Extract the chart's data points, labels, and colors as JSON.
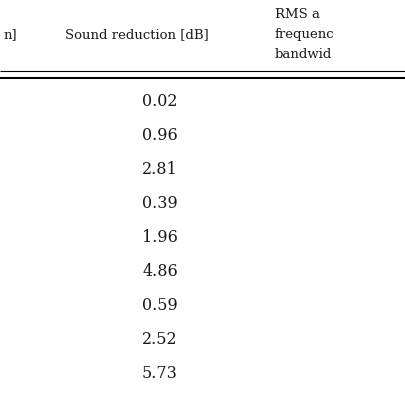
{
  "col1_header": "n]",
  "col2_header": "Sound reduction [dB]",
  "col3_header_line1": "RMS a",
  "col3_header_line2": "frequenc",
  "col3_header_line3": "bandwid",
  "sound_reduction_values": [
    "0.02",
    "0.96",
    "2.81",
    "0.39",
    "1.96",
    "4.86",
    "0.59",
    "2.52",
    "5.73"
  ],
  "background_color": "#ffffff",
  "text_color": "#1a1a1a",
  "line_color": "#000000",
  "fig_width": 4.06,
  "fig_height": 4.06,
  "dpi": 100
}
